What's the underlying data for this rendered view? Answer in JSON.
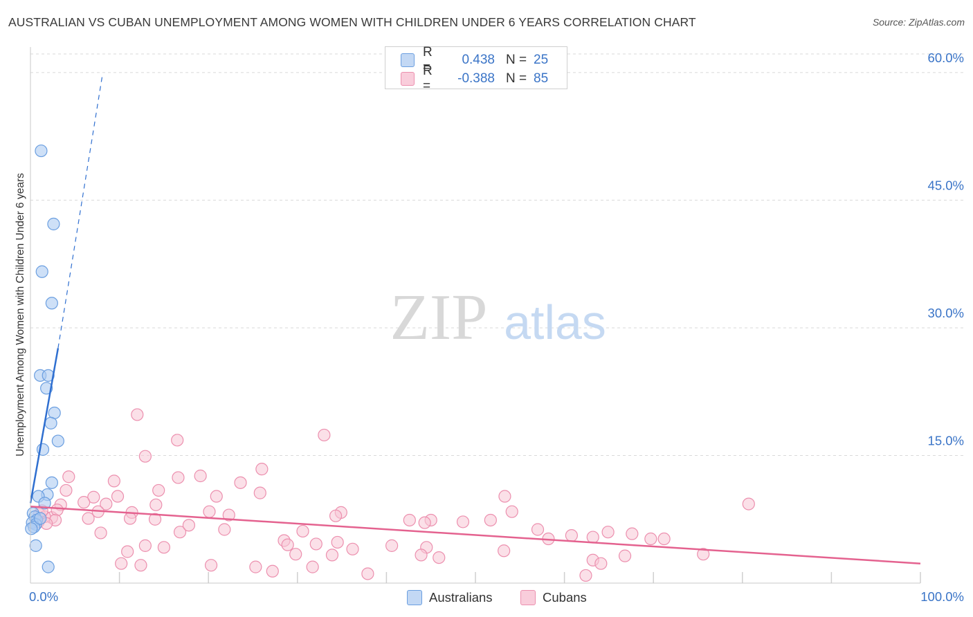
{
  "title": "AUSTRALIAN VS CUBAN UNEMPLOYMENT AMONG WOMEN WITH CHILDREN UNDER 6 YEARS CORRELATION CHART",
  "source": "Source: ZipAtlas.com",
  "watermark": {
    "zip": "ZIP",
    "atlas": "atlas"
  },
  "colors": {
    "blue_fill": "#aecbf1",
    "blue_stroke": "#6a9ee0",
    "blue_line": "#2f6fd0",
    "pink_fill": "#f8c7d6",
    "pink_stroke": "#ec8fae",
    "pink_line": "#e4628f",
    "axis_text": "#3a74c7",
    "grid": "#d9d9d9"
  },
  "legend": {
    "rows": [
      {
        "r_label": "R =",
        "r_value": "0.438",
        "n_label": "N =",
        "n_value": "25"
      },
      {
        "r_label": "R =",
        "r_value": "-0.388",
        "n_label": "N =",
        "n_value": "85"
      }
    ]
  },
  "bottom_legend": {
    "australians": "Australians",
    "cubans": "Cubans"
  },
  "chart_data": {
    "type": "scatter",
    "title": "AUSTRALIAN VS CUBAN UNEMPLOYMENT AMONG WOMEN WITH CHILDREN UNDER 6 YEARS CORRELATION CHART",
    "xlabel": "",
    "ylabel": "Unemployment Among Women with Children Under 6 years",
    "xlim": [
      0,
      100
    ],
    "ylim": [
      0,
      63
    ],
    "x_tick_labels": [
      "0.0%",
      "100.0%"
    ],
    "y_ticks": [
      15,
      30,
      45,
      60
    ],
    "y_tick_labels": [
      "15.0%",
      "30.0%",
      "45.0%",
      "60.0%"
    ],
    "grid": true,
    "series": [
      {
        "name": "Australians",
        "points": [
          [
            1.2,
            50.8
          ],
          [
            2.6,
            42.2
          ],
          [
            1.3,
            36.6
          ],
          [
            2.4,
            32.9
          ],
          [
            1.1,
            24.4
          ],
          [
            2.0,
            24.4
          ],
          [
            1.8,
            22.9
          ],
          [
            2.7,
            20.0
          ],
          [
            2.3,
            18.8
          ],
          [
            3.1,
            16.7
          ],
          [
            1.4,
            15.7
          ],
          [
            2.4,
            11.8
          ],
          [
            1.9,
            10.4
          ],
          [
            0.9,
            10.2
          ],
          [
            1.6,
            9.4
          ],
          [
            0.3,
            8.2
          ],
          [
            0.5,
            7.8
          ],
          [
            0.7,
            7.4
          ],
          [
            0.2,
            7.1
          ],
          [
            0.6,
            6.9
          ],
          [
            0.4,
            6.6
          ],
          [
            0.1,
            6.4
          ],
          [
            0.6,
            4.4
          ],
          [
            2.0,
            1.9
          ],
          [
            1.1,
            7.6
          ]
        ],
        "trend_solid": [
          [
            0.0,
            9.4
          ],
          [
            3.1,
            27.6
          ]
        ],
        "trend_dashed": [
          [
            3.1,
            27.6
          ],
          [
            8.1,
            59.8
          ]
        ]
      },
      {
        "name": "Cubans",
        "points": [
          [
            12.0,
            19.8
          ],
          [
            16.5,
            16.8
          ],
          [
            33.0,
            17.4
          ],
          [
            12.9,
            14.9
          ],
          [
            26.0,
            13.4
          ],
          [
            4.3,
            12.5
          ],
          [
            9.4,
            12.0
          ],
          [
            16.6,
            12.4
          ],
          [
            19.1,
            12.6
          ],
          [
            23.6,
            11.8
          ],
          [
            4.0,
            10.9
          ],
          [
            14.4,
            10.9
          ],
          [
            7.1,
            10.1
          ],
          [
            9.8,
            10.2
          ],
          [
            20.9,
            10.2
          ],
          [
            25.8,
            10.6
          ],
          [
            53.3,
            10.2
          ],
          [
            80.7,
            9.3
          ],
          [
            3.4,
            9.2
          ],
          [
            6.0,
            9.5
          ],
          [
            8.5,
            9.3
          ],
          [
            14.1,
            9.2
          ],
          [
            1.0,
            8.1
          ],
          [
            2.4,
            7.7
          ],
          [
            7.6,
            8.4
          ],
          [
            11.4,
            8.3
          ],
          [
            20.1,
            8.4
          ],
          [
            22.3,
            8.0
          ],
          [
            34.9,
            8.3
          ],
          [
            34.3,
            7.9
          ],
          [
            54.1,
            8.4
          ],
          [
            1.6,
            7.8
          ],
          [
            6.5,
            7.6
          ],
          [
            11.2,
            7.6
          ],
          [
            14.0,
            7.5
          ],
          [
            42.6,
            7.4
          ],
          [
            45.0,
            7.4
          ],
          [
            48.6,
            7.2
          ],
          [
            51.7,
            7.4
          ],
          [
            44.3,
            7.1
          ],
          [
            7.9,
            5.9
          ],
          [
            16.8,
            6.0
          ],
          [
            17.8,
            6.8
          ],
          [
            21.8,
            6.3
          ],
          [
            30.6,
            6.1
          ],
          [
            57.0,
            6.3
          ],
          [
            60.8,
            5.6
          ],
          [
            63.2,
            5.4
          ],
          [
            64.9,
            6.0
          ],
          [
            67.6,
            5.8
          ],
          [
            69.7,
            5.2
          ],
          [
            71.2,
            5.2
          ],
          [
            58.2,
            5.2
          ],
          [
            28.5,
            5.0
          ],
          [
            28.9,
            4.5
          ],
          [
            32.1,
            4.6
          ],
          [
            34.5,
            4.8
          ],
          [
            12.9,
            4.4
          ],
          [
            15.0,
            4.2
          ],
          [
            36.2,
            4.0
          ],
          [
            40.6,
            4.4
          ],
          [
            44.5,
            4.2
          ],
          [
            53.2,
            3.8
          ],
          [
            10.9,
            3.7
          ],
          [
            29.8,
            3.4
          ],
          [
            33.9,
            3.3
          ],
          [
            43.9,
            3.3
          ],
          [
            45.9,
            3.0
          ],
          [
            66.8,
            3.2
          ],
          [
            75.6,
            3.4
          ],
          [
            10.2,
            2.3
          ],
          [
            12.4,
            2.1
          ],
          [
            20.3,
            2.1
          ],
          [
            25.3,
            1.9
          ],
          [
            31.7,
            1.9
          ],
          [
            63.2,
            2.7
          ],
          [
            64.1,
            2.3
          ],
          [
            27.2,
            1.4
          ],
          [
            37.9,
            1.1
          ],
          [
            62.4,
            0.9
          ],
          [
            0.9,
            7.2
          ],
          [
            3.0,
            8.6
          ],
          [
            2.8,
            7.4
          ],
          [
            1.3,
            8.5
          ],
          [
            1.8,
            7.0
          ]
        ],
        "trend_solid": [
          [
            0.0,
            9.0
          ],
          [
            100.0,
            2.3
          ]
        ]
      }
    ]
  }
}
